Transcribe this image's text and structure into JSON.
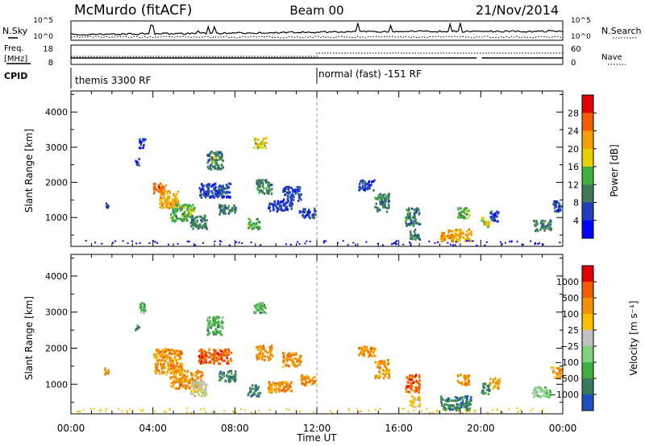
{
  "header": {
    "station": "McMurdo (fitACF)",
    "beam": "Beam 00",
    "date": "21/Nov/2014"
  },
  "top_panels": {
    "nsky_label": "N.Sky",
    "nsearch_label": "N.Search",
    "nsky_ticks": [
      "10^5",
      "10^0"
    ],
    "nsearch_ticks": [
      "10^5",
      "10^0"
    ],
    "freq_label": "Freq.",
    "freq_unit": "[MHz]",
    "freq_ticks": [
      "18",
      "8"
    ],
    "nave_label": "Nave",
    "nave_ticks": [
      "60",
      "0"
    ],
    "cpid_label": "CPID",
    "cpid_segments": [
      {
        "start_hour": 0,
        "text": "themis 3300 RF"
      },
      {
        "start_hour": 12,
        "text": "normal (fast) -151 RF"
      }
    ]
  },
  "chart_data": [
    {
      "type": "heatmap",
      "name": "power",
      "ylabel": "Slant Range [km]",
      "xlabel": "Time UT",
      "xlim_hours": [
        0,
        24
      ],
      "ylim_km": [
        180,
        4600
      ],
      "x_tick_labels": [
        "00:00",
        "04:00",
        "08:00",
        "12:00",
        "16:00",
        "20:00",
        "00:00"
      ],
      "y_ticks": [
        1000,
        2000,
        3000,
        4000
      ],
      "colorbar": {
        "label": "Power [dB]",
        "ticks": [
          "4",
          "8",
          "12",
          "16",
          "20",
          "24",
          "28"
        ],
        "range": [
          0,
          30
        ],
        "colors": [
          "#0000ff",
          "#2040c0",
          "#3c7a5a",
          "#40b040",
          "#e8d000",
          "#f0a000",
          "#f06000",
          "#e00000"
        ]
      },
      "echo_regions": [
        {
          "t0": 1.6,
          "t1": 1.8,
          "r0": 1300,
          "r1": 1500,
          "level": 1
        },
        {
          "t0": 3.1,
          "t1": 3.3,
          "r0": 2500,
          "r1": 2700,
          "level": 1
        },
        {
          "t0": 3.3,
          "t1": 3.6,
          "r0": 3000,
          "r1": 3300,
          "level": 1
        },
        {
          "t0": 4.0,
          "t1": 4.6,
          "r0": 1700,
          "r1": 2000,
          "level": 6
        },
        {
          "t0": 4.3,
          "t1": 5.2,
          "r0": 1300,
          "r1": 1800,
          "level": 5
        },
        {
          "t0": 4.8,
          "t1": 6.0,
          "r0": 900,
          "r1": 1400,
          "level": 3
        },
        {
          "t0": 5.8,
          "t1": 6.6,
          "r0": 700,
          "r1": 1100,
          "level": 2
        },
        {
          "t0": 6.6,
          "t1": 7.4,
          "r0": 2400,
          "r1": 2900,
          "level": 2
        },
        {
          "t0": 6.9,
          "t1": 7.1,
          "r0": 2600,
          "r1": 2750,
          "level": 3
        },
        {
          "t0": 6.2,
          "t1": 7.8,
          "r0": 1600,
          "r1": 2000,
          "level": 1
        },
        {
          "t0": 7.2,
          "t1": 8.0,
          "r0": 1100,
          "r1": 1400,
          "level": 2
        },
        {
          "t0": 8.6,
          "t1": 9.2,
          "r0": 700,
          "r1": 1000,
          "level": 3
        },
        {
          "t0": 8.9,
          "t1": 9.5,
          "r0": 3000,
          "r1": 3300,
          "level": 4
        },
        {
          "t0": 9.0,
          "t1": 9.8,
          "r0": 1700,
          "r1": 2100,
          "level": 2
        },
        {
          "t0": 9.6,
          "t1": 10.8,
          "r0": 1200,
          "r1": 1500,
          "level": 1
        },
        {
          "t0": 10.3,
          "t1": 11.2,
          "r0": 1500,
          "r1": 1900,
          "level": 1
        },
        {
          "t0": 11.1,
          "t1": 11.9,
          "r0": 1000,
          "r1": 1300,
          "level": 1
        },
        {
          "t0": 14.0,
          "t1": 14.8,
          "r0": 1800,
          "r1": 2100,
          "level": 1
        },
        {
          "t0": 14.8,
          "t1": 15.5,
          "r0": 1200,
          "r1": 1700,
          "level": 2
        },
        {
          "t0": 16.3,
          "t1": 17.0,
          "r0": 800,
          "r1": 1300,
          "level": 2
        },
        {
          "t0": 16.5,
          "t1": 17.0,
          "r0": 400,
          "r1": 700,
          "level": 2
        },
        {
          "t0": 18.0,
          "t1": 19.5,
          "r0": 350,
          "r1": 700,
          "level": 5
        },
        {
          "t0": 18.8,
          "t1": 19.4,
          "r0": 1000,
          "r1": 1300,
          "level": 3
        },
        {
          "t0": 20.0,
          "t1": 20.4,
          "r0": 750,
          "r1": 1050,
          "level": 4
        },
        {
          "t0": 20.4,
          "t1": 20.9,
          "r0": 900,
          "r1": 1200,
          "level": 1
        },
        {
          "t0": 22.5,
          "t1": 23.4,
          "r0": 650,
          "r1": 950,
          "level": 2
        },
        {
          "t0": 23.4,
          "t1": 23.9,
          "r0": 1200,
          "r1": 1500,
          "level": 1
        }
      ]
    },
    {
      "type": "heatmap",
      "name": "velocity",
      "ylabel": "Slant Range [km]",
      "xlabel": "Time UT",
      "xlim_hours": [
        0,
        24
      ],
      "ylim_km": [
        180,
        4600
      ],
      "x_tick_labels": [
        "00:00",
        "04:00",
        "08:00",
        "12:00",
        "16:00",
        "20:00",
        "00:00"
      ],
      "y_ticks": [
        1000,
        2000,
        3000,
        4000
      ],
      "colorbar": {
        "label": "Velocity [m s⁻¹]",
        "ticks": [
          "1000",
          "500",
          "100",
          "25",
          "−25",
          "−100",
          "−500",
          "−1000"
        ],
        "colors": [
          "#2050c0",
          "#3a7a5a",
          "#40b040",
          "#80d080",
          "#c0c0c0",
          "#f8c000",
          "#f09000",
          "#f06000",
          "#e00000"
        ]
      },
      "echo_regions": [
        {
          "t0": 1.6,
          "t1": 1.8,
          "r0": 1300,
          "r1": 1500,
          "level": 6
        },
        {
          "t0": 3.1,
          "t1": 3.3,
          "r0": 2500,
          "r1": 2700,
          "level": 1
        },
        {
          "t0": 3.3,
          "t1": 3.6,
          "r0": 3000,
          "r1": 3300,
          "level": 2
        },
        {
          "t0": 4.0,
          "t1": 5.4,
          "r0": 1300,
          "r1": 2000,
          "level": 6
        },
        {
          "t0": 4.8,
          "t1": 6.4,
          "r0": 900,
          "r1": 1400,
          "level": 6
        },
        {
          "t0": 5.8,
          "t1": 6.6,
          "r0": 700,
          "r1": 1100,
          "level": 4
        },
        {
          "t0": 6.6,
          "t1": 7.4,
          "r0": 2400,
          "r1": 2900,
          "level": 2
        },
        {
          "t0": 6.2,
          "t1": 7.8,
          "r0": 1600,
          "r1": 2000,
          "level": 7
        },
        {
          "t0": 7.2,
          "t1": 8.0,
          "r0": 1100,
          "r1": 1400,
          "level": 1
        },
        {
          "t0": 8.6,
          "t1": 9.2,
          "r0": 700,
          "r1": 1000,
          "level": 1
        },
        {
          "t0": 8.9,
          "t1": 9.5,
          "r0": 3000,
          "r1": 3300,
          "level": 2
        },
        {
          "t0": 9.0,
          "t1": 9.8,
          "r0": 1700,
          "r1": 2100,
          "level": 6
        },
        {
          "t0": 9.6,
          "t1": 10.8,
          "r0": 800,
          "r1": 1100,
          "level": 6
        },
        {
          "t0": 10.3,
          "t1": 11.2,
          "r0": 1500,
          "r1": 1900,
          "level": 6
        },
        {
          "t0": 11.1,
          "t1": 11.9,
          "r0": 1000,
          "r1": 1300,
          "level": 6
        },
        {
          "t0": 14.0,
          "t1": 14.8,
          "r0": 1800,
          "r1": 2100,
          "level": 6
        },
        {
          "t0": 14.8,
          "t1": 15.5,
          "r0": 1200,
          "r1": 1700,
          "level": 6
        },
        {
          "t0": 16.3,
          "t1": 17.0,
          "r0": 800,
          "r1": 1300,
          "level": 7
        },
        {
          "t0": 16.5,
          "t1": 17.0,
          "r0": 400,
          "r1": 700,
          "level": 5
        },
        {
          "t0": 18.0,
          "t1": 19.5,
          "r0": 300,
          "r1": 700,
          "level": 1
        },
        {
          "t0": 18.8,
          "t1": 19.4,
          "r0": 1000,
          "r1": 1300,
          "level": 6
        },
        {
          "t0": 20.0,
          "t1": 20.4,
          "r0": 750,
          "r1": 1050,
          "level": 1
        },
        {
          "t0": 20.4,
          "t1": 20.9,
          "r0": 900,
          "r1": 1200,
          "level": 6
        },
        {
          "t0": 22.5,
          "t1": 23.4,
          "r0": 650,
          "r1": 950,
          "level": 3
        },
        {
          "t0": 23.4,
          "t1": 23.9,
          "r0": 1200,
          "r1": 1500,
          "level": 6
        }
      ]
    }
  ]
}
